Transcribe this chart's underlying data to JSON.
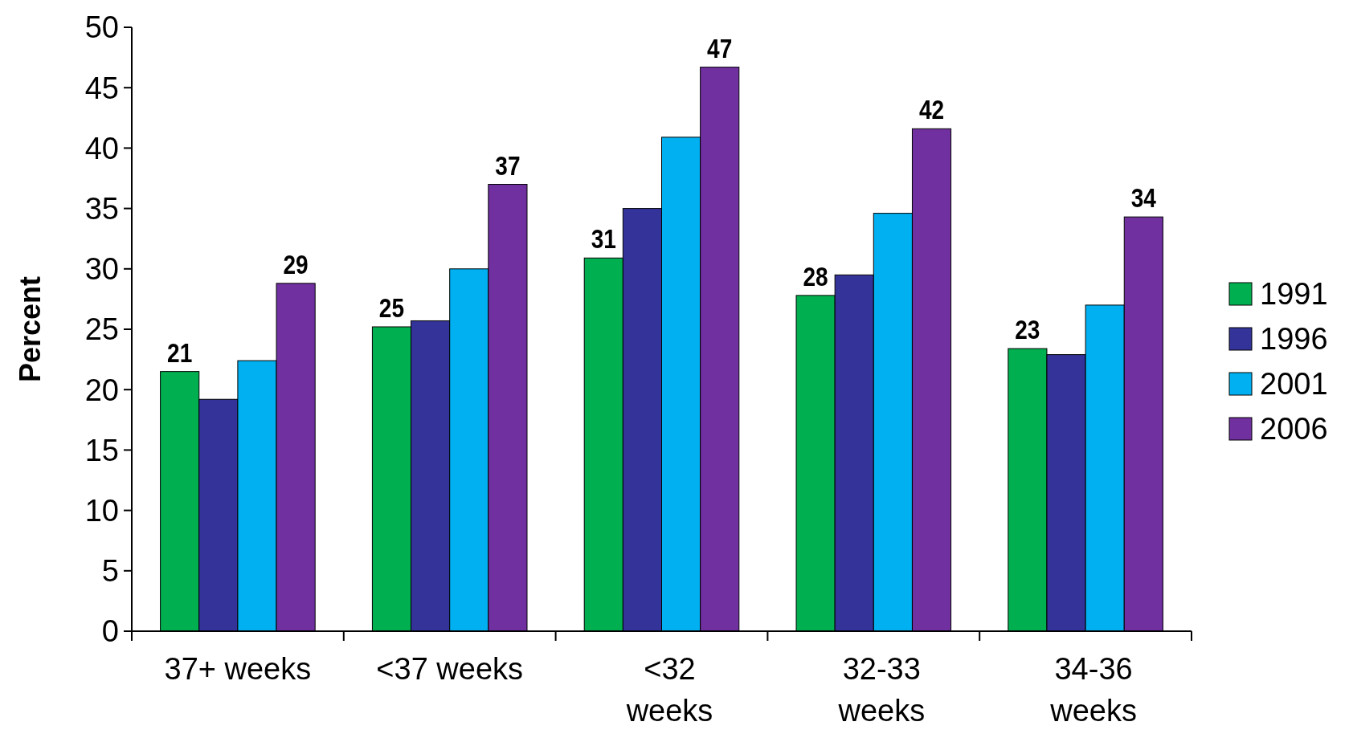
{
  "chart_data": {
    "type": "bar",
    "ylabel": "Percent",
    "categories": [
      "37+ weeks",
      "<37 weeks",
      "<32\nweeks",
      "32-33\nweeks",
      "34-36\nweeks"
    ],
    "series": [
      {
        "name": "1991",
        "color": "#00b050",
        "values": [
          21.5,
          25.2,
          30.9,
          27.8,
          23.4
        ],
        "value_labels": [
          "21",
          "25",
          "31",
          "28",
          "23"
        ]
      },
      {
        "name": "1996",
        "color": "#333399",
        "values": [
          19.2,
          25.7,
          35.0,
          29.5,
          22.9
        ]
      },
      {
        "name": "2001",
        "color": "#00b0f0",
        "values": [
          22.4,
          30.0,
          40.9,
          34.6,
          27.0
        ]
      },
      {
        "name": "2006",
        "color": "#7030a0",
        "values": [
          28.8,
          37.0,
          46.7,
          41.6,
          34.3
        ],
        "value_labels": [
          "29",
          "37",
          "47",
          "42",
          "34"
        ]
      }
    ],
    "ylim": [
      0,
      50
    ],
    "yticks": [
      0,
      5,
      10,
      15,
      20,
      25,
      30,
      35,
      40,
      45,
      50
    ],
    "grid": false,
    "legend": "right"
  }
}
